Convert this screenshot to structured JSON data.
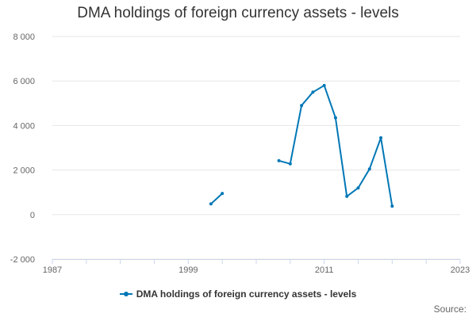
{
  "chart_data": {
    "type": "line",
    "title": "DMA holdings of foreign currency assets - levels",
    "xlabel": "",
    "ylabel": "",
    "x_ticks": [
      "1987",
      "1999",
      "2011",
      "2023"
    ],
    "y_ticks": [
      "-2 000",
      "0",
      "2 000",
      "4 000",
      "6 000",
      "8 000"
    ],
    "xlim": [
      1987,
      2023
    ],
    "ylim": [
      -2000,
      8000
    ],
    "grid": "horizontal",
    "legend_position": "bottom",
    "series": [
      {
        "name": "DMA holdings of foreign currency assets - levels",
        "color": "#0077b6",
        "segments": [
          [
            [
              2001,
              480
            ],
            [
              2002,
              950
            ]
          ],
          [
            [
              2007,
              2420
            ],
            [
              2008,
              2280
            ],
            [
              2009,
              4900
            ],
            [
              2010,
              5500
            ],
            [
              2011,
              5800
            ],
            [
              2012,
              4350
            ],
            [
              2013,
              820
            ],
            [
              2014,
              1200
            ],
            [
              2015,
              2050
            ],
            [
              2016,
              3450
            ],
            [
              2017,
              380
            ]
          ]
        ]
      }
    ]
  },
  "source_label": "Source:"
}
